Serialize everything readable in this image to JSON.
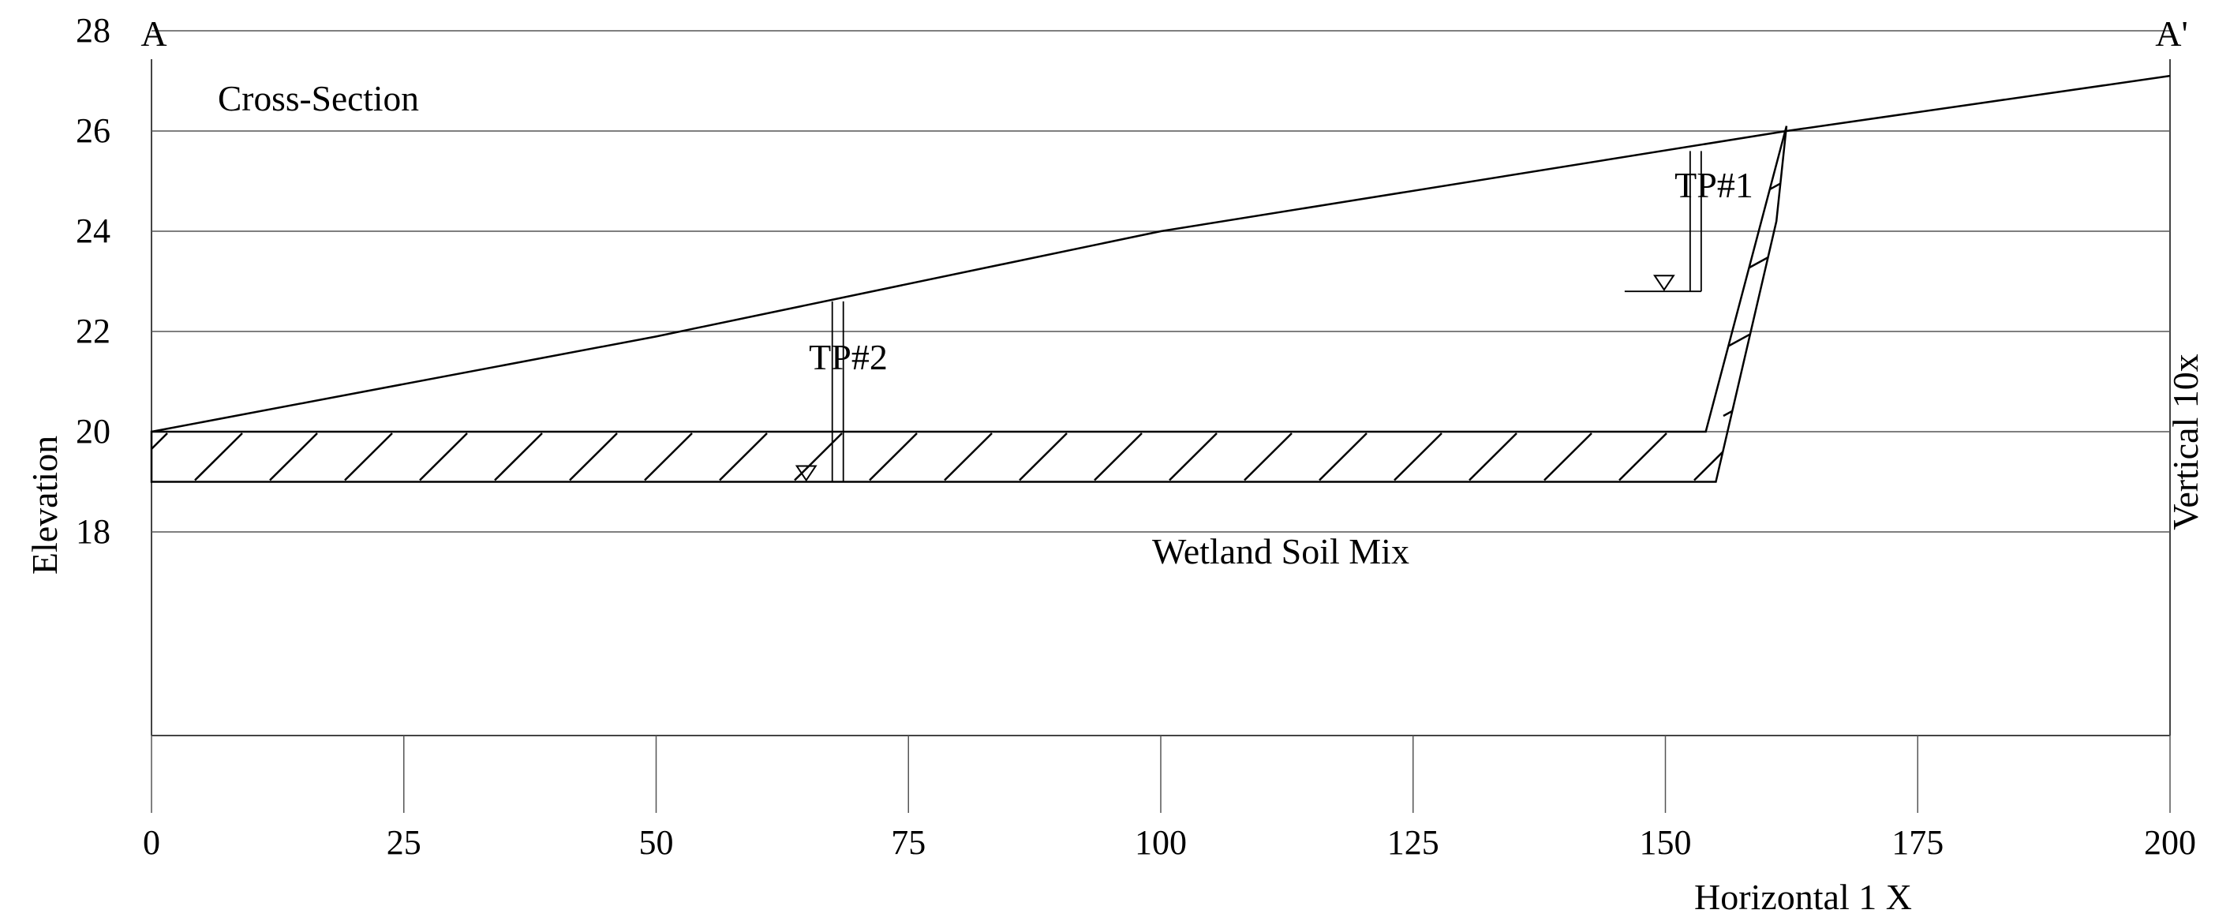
{
  "diagram": {
    "section_start": "A",
    "section_end": "A'",
    "title": "Cross-Section",
    "y_axis_label": "Elevation",
    "x_axis_label": "Horizontal 1 X",
    "vertical_scale_label": "Vertical 10x",
    "layer_label": "Wetland Soil Mix",
    "test_pits": [
      {
        "label": "TP#1",
        "station": 153,
        "top_elevation": 25.6,
        "water_elevation": 22.8
      },
      {
        "label": "TP#2",
        "station": 68,
        "top_elevation": 22.6,
        "water_elevation": 19.0
      }
    ]
  },
  "chart_data": {
    "type": "line",
    "x_ticks": [
      "0",
      "25",
      "50",
      "75",
      "100",
      "125",
      "150",
      "175",
      "200"
    ],
    "y_ticks": [
      "28",
      "26",
      "24",
      "22",
      "20",
      "18"
    ],
    "xlim": [
      0,
      200
    ],
    "ylim": [
      16,
      30
    ],
    "grid": true,
    "series": [
      {
        "x": [
          0,
          50,
          100,
          162,
          200
        ],
        "y": [
          20,
          21.9,
          24.0,
          26.0,
          27.1
        ]
      }
    ],
    "wetland_soil_mix": {
      "top_elevation": 20,
      "bottom_elevation": 19,
      "x_start": 0,
      "x_end": 154,
      "slope_x_bottom": 155,
      "slope_x_top": 162,
      "slope_top_elevation": 26.1
    }
  },
  "colors": {
    "line": "#000000",
    "grid": "#444444",
    "background": "#ffffff"
  }
}
